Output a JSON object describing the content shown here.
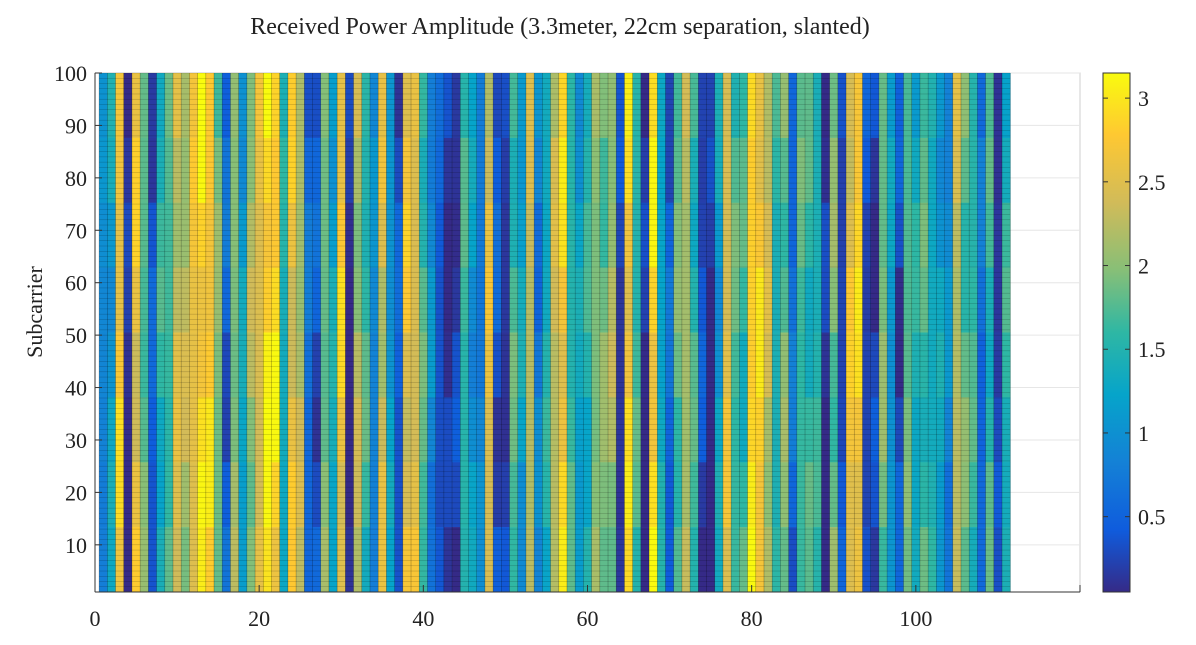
{
  "chart_data": {
    "type": "heatmap",
    "title": "Received Power Amplitude (3.3meter, 22cm separation, slanted)",
    "xlabel": "",
    "ylabel": "Subcarrier",
    "xlim": [
      0,
      120
    ],
    "ylim": [
      1,
      100
    ],
    "x_ticks": [
      0,
      20,
      40,
      60,
      80,
      100
    ],
    "y_ticks": [
      10,
      20,
      30,
      40,
      50,
      60,
      70,
      80,
      90,
      100
    ],
    "x_range": [
      1,
      111
    ],
    "y_range": [
      1,
      100
    ],
    "colorbar": {
      "colormap": "parula",
      "range": [
        0.05,
        3.15
      ],
      "ticks": [
        0.5,
        1,
        1.5,
        2,
        2.5,
        3
      ]
    },
    "column_amplitudes": [
      0.9,
      1.2,
      2.7,
      0.1,
      2.6,
      1.8,
      0.4,
      1.5,
      1.7,
      2.4,
      2.2,
      2.6,
      2.9,
      2.8,
      1.9,
      0.5,
      2.0,
      1.2,
      2.1,
      2.5,
      3.0,
      2.9,
      1.4,
      2.6,
      2.2,
      0.6,
      0.4,
      1.9,
      1.3,
      2.7,
      0.1,
      2.2,
      1.6,
      0.9,
      2.4,
      1.1,
      0.4,
      2.6,
      2.5,
      1.7,
      0.9,
      0.4,
      0.1,
      0.2,
      1.6,
      1.1,
      0.8,
      2.5,
      0.4,
      0.2,
      1.7,
      1.2,
      2.3,
      0.8,
      1.4,
      2.3,
      2.8,
      1.6,
      1.2,
      1.5,
      2.0,
      1.9,
      2.1,
      0.2,
      2.8,
      1.6,
      0.1,
      2.9,
      1.3,
      0.5,
      1.8,
      2.2,
      1.6,
      0.3,
      0.1,
      1.2,
      2.5,
      1.7,
      1.6,
      2.9,
      2.8,
      2.3,
      1.5,
      1.9,
      0.6,
      1.7,
      1.6,
      1.5,
      0.1,
      1.9,
      0.3,
      2.6,
      2.8,
      0.3,
      0.2,
      1.9,
      1.1,
      0.3,
      1.8,
      1.4,
      1.7,
      1.4,
      1.2,
      0.9,
      2.3,
      1.8,
      1.6,
      0.6,
      1.6,
      0.2,
      1.5
    ],
    "grid": true
  }
}
